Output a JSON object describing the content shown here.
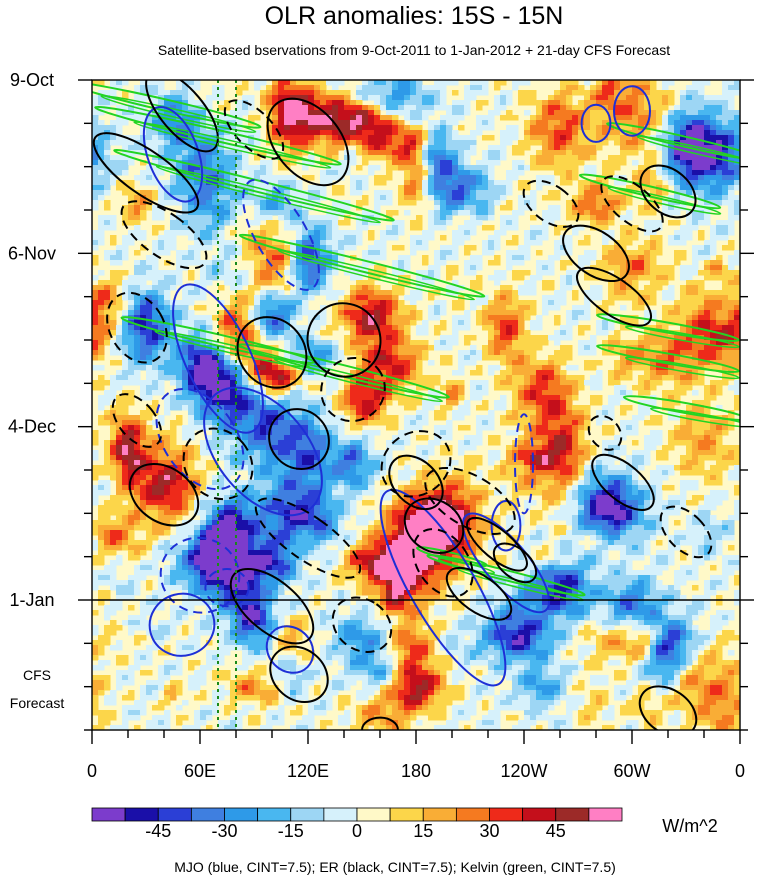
{
  "chart_data": {
    "type": "heatmap",
    "title": "OLR anomalies: 15S - 15N",
    "subtitle": "Satellite-based bservations from 9-Oct-2011 to 1-Jan-2012 + 21-day CFS Forecast",
    "y_tick_labels": [
      "9-Oct",
      "6-Nov",
      "4-Dec",
      "1-Jan"
    ],
    "forecast_label": [
      "CFS",
      "Forecast"
    ],
    "x_tick_labels": [
      "0",
      "60E",
      "120E",
      "180",
      "120W",
      "60W",
      "0"
    ],
    "x_ticks_deg": [
      0,
      60,
      120,
      180,
      240,
      300,
      360
    ],
    "x_range_deg": [
      0,
      360
    ],
    "time_range_days": [
      0,
      105
    ],
    "y_ticks_day": [
      0,
      28,
      56,
      84
    ],
    "observation_end_day": 84,
    "colorbar": {
      "tick_labels": [
        "-45",
        "-30",
        "-15",
        "0",
        "15",
        "30",
        "45"
      ],
      "levels": [
        -52.5,
        -45,
        -37.5,
        -30,
        -22.5,
        -15,
        -7.5,
        0,
        7.5,
        15,
        22.5,
        30,
        37.5,
        45,
        52.5
      ],
      "colors": [
        "#7c3ccc",
        "#1a0fa8",
        "#2b3fd6",
        "#3f7fe0",
        "#2e9ae8",
        "#49b7f0",
        "#9dd6f4",
        "#d6f1fb",
        "#fff9c8",
        "#fcd64a",
        "#f9ad36",
        "#f57a20",
        "#ee2a1a",
        "#c40f1b",
        "#9c2a28",
        "#ff7fc4"
      ],
      "units": "W/m^2"
    },
    "contour_legend": "MJO (blue, CINT=7.5); ER (black, CINT=7.5); Kelvin (green, CINT=7.5)",
    "contour_colors": {
      "mjo": "#1e2fd6",
      "er": "#000000",
      "kelvin": "#22d422",
      "reference_lines": "#1a8a1a"
    },
    "reference_lines_deg": [
      70,
      80
    ]
  }
}
